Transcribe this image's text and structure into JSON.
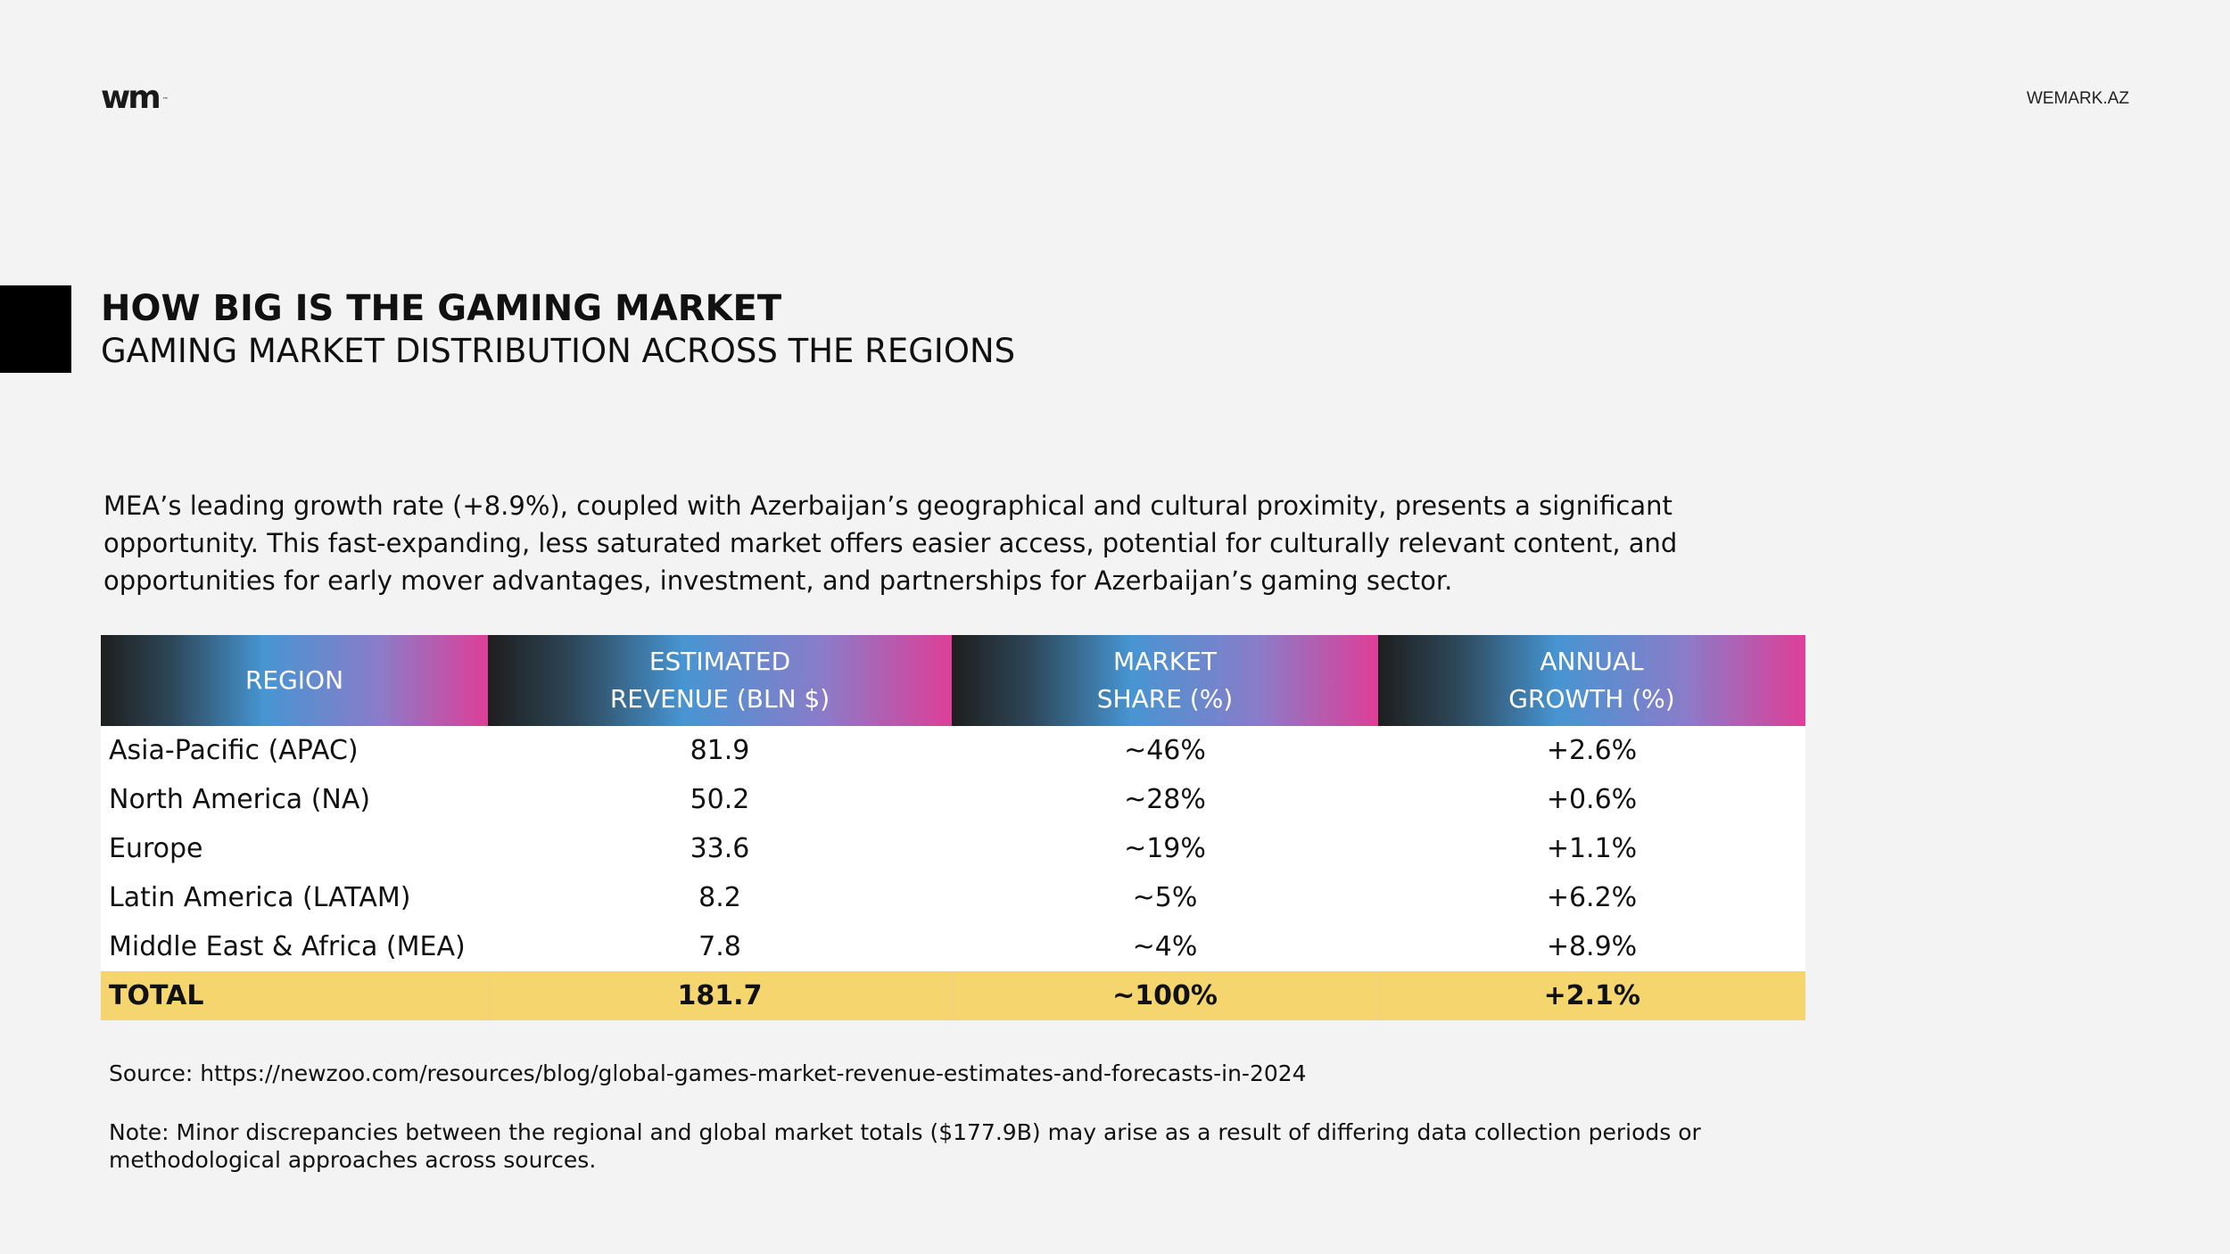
{
  "header": {
    "logo_text": "wm",
    "logo_tm": "™",
    "site_url": "WEMARK.AZ"
  },
  "title": "HOW BIG IS THE GAMING MARKET",
  "subtitle": "GAMING MARKET DISTRIBUTION ACROSS THE REGIONS",
  "intro": "MEA’s leading growth rate (+8.9%), coupled with Azerbaijan’s geographical and cultural proximity, presents a significant opportunity. This fast-expanding, less saturated market offers easier access, potential for culturally relevant content, and opportunities for early mover advantages, investment, and partnerships for Azerbaijan’s gaming sector.",
  "table": {
    "headers": [
      {
        "line1": "REGION",
        "line2": ""
      },
      {
        "line1": "ESTIMATED",
        "line2": "REVENUE (BLN $)"
      },
      {
        "line1": "MARKET",
        "line2": "SHARE (%)"
      },
      {
        "line1": "ANNUAL",
        "line2": "GROWTH (%)"
      }
    ],
    "rows": [
      {
        "region": "Asia-Pacific (APAC)",
        "revenue": "81.9",
        "share": "~46%",
        "growth": "+2.6%"
      },
      {
        "region": "North America (NA)",
        "revenue": "50.2",
        "share": "~28%",
        "growth": "+0.6%"
      },
      {
        "region": "Europe",
        "revenue": "33.6",
        "share": "~19%",
        "growth": "+1.1%"
      },
      {
        "region": "Latin America (LATAM)",
        "revenue": "8.2",
        "share": "~5%",
        "growth": "+6.2%"
      },
      {
        "region": "Middle East & Africa (MEA)",
        "revenue": "7.8",
        "share": "~4%",
        "growth": "+8.9%"
      }
    ],
    "total": {
      "region": "TOTAL",
      "revenue": "181.7",
      "share": "~100%",
      "growth": "+2.1%"
    }
  },
  "source": "Source: https://newzoo.com/resources/blog/global-games-market-revenue-estimates-and-forecasts-in-2024",
  "note": "Note: Minor discrepancies between the regional and global market totals ($177.9B) may arise as a result of differing data collection periods or methodological approaches across sources.",
  "colors": {
    "background": "#f3f3f3",
    "total_row": "#f5d56e",
    "header_gradient": [
      "#1e1e1e",
      "#4795d2",
      "#de3e98"
    ]
  }
}
